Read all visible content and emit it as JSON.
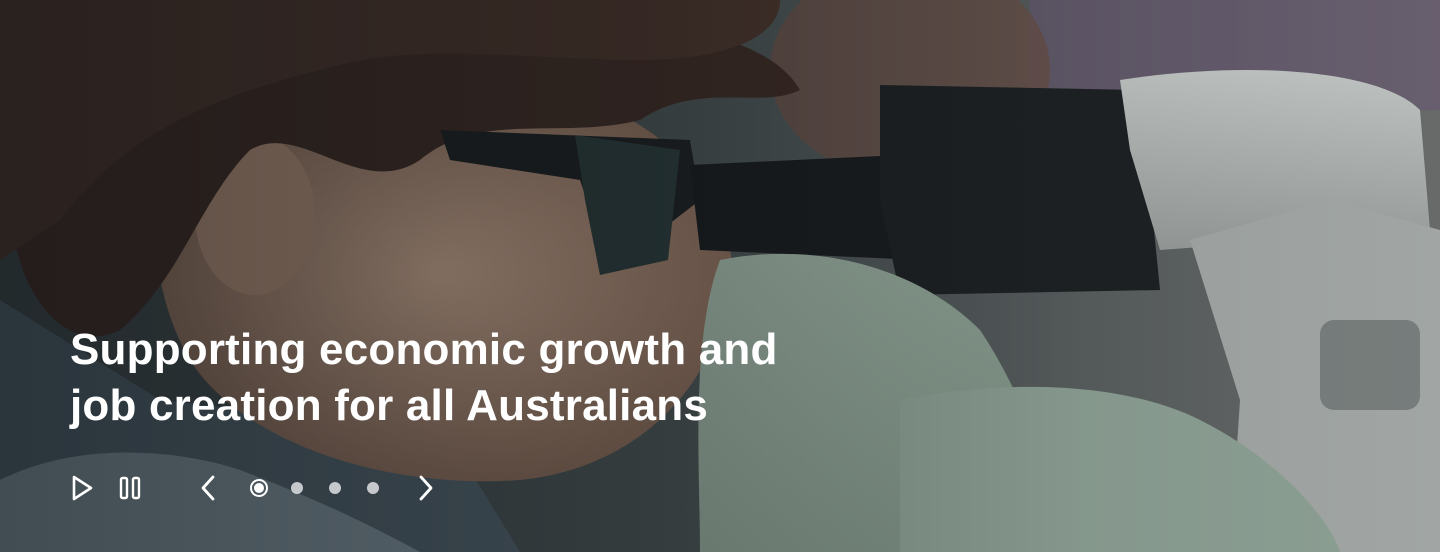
{
  "hero": {
    "headline_line1": "Supporting economic growth and",
    "headline_line2": "job creation for all Australians"
  },
  "carousel": {
    "slide_count": 4,
    "active_slide": 1,
    "controls": {
      "play_icon": "play-icon",
      "pause_icon": "pause-icon",
      "prev_icon": "chevron-left-icon",
      "next_icon": "chevron-right-icon"
    }
  },
  "colors": {
    "headline": "#ffffff",
    "controls": "#ffffff"
  }
}
